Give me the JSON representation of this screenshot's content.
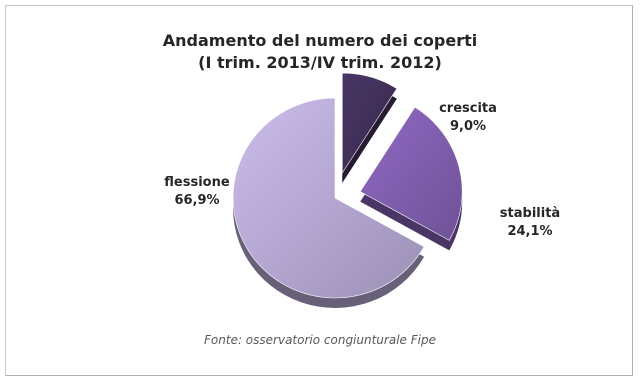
{
  "chart_data": {
    "type": "pie",
    "title_lines": [
      "Andamento del numero dei coperti",
      "(I trim. 2013/IV trim. 2012)"
    ],
    "slices": [
      {
        "label": "crescita",
        "value": 9.0,
        "value_label": "9,0%",
        "exploded": true,
        "color": "#3d2e55"
      },
      {
        "label": "stabilità",
        "value": 24.1,
        "value_label": "24,1%",
        "exploded": true,
        "color": "#7b5aa7"
      },
      {
        "label": "flessione",
        "value": 66.9,
        "value_label": "66,9%",
        "exploded": false,
        "color": "#ada0c9"
      }
    ],
    "source": "Fonte: osservatorio congiunturale Fipe"
  }
}
